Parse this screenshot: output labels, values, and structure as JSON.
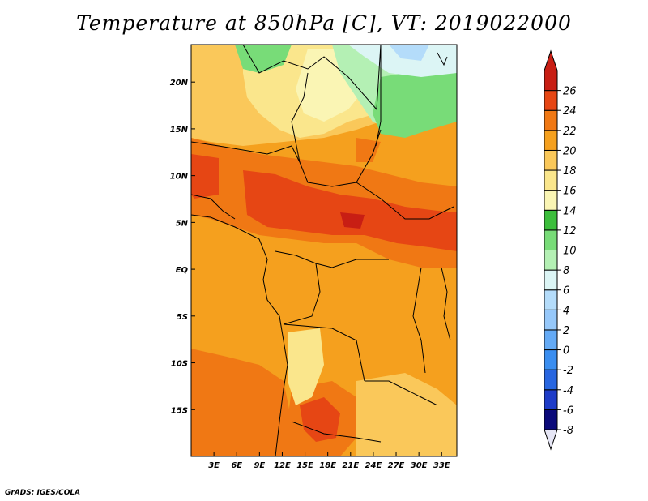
{
  "title": "Temperature at 850hPa [C], VT: 2019022000",
  "credit": "GrADS: IGES/COLA",
  "map": {
    "lon_range": [
      0,
      35
    ],
    "lat_range": [
      -20,
      24
    ],
    "lon_ticks": [
      {
        "value": 3,
        "label": "3E"
      },
      {
        "value": 6,
        "label": "6E"
      },
      {
        "value": 9,
        "label": "9E"
      },
      {
        "value": 12,
        "label": "12E"
      },
      {
        "value": 15,
        "label": "15E"
      },
      {
        "value": 18,
        "label": "18E"
      },
      {
        "value": 21,
        "label": "21E"
      },
      {
        "value": 24,
        "label": "24E"
      },
      {
        "value": 27,
        "label": "27E"
      },
      {
        "value": 30,
        "label": "30E"
      },
      {
        "value": 33,
        "label": "33E"
      }
    ],
    "lat_ticks": [
      {
        "value": 20,
        "label": "20N"
      },
      {
        "value": 15,
        "label": "15N"
      },
      {
        "value": 10,
        "label": "10N"
      },
      {
        "value": 5,
        "label": "5N"
      },
      {
        "value": 0,
        "label": "EQ"
      },
      {
        "value": -5,
        "label": "5S"
      },
      {
        "value": -10,
        "label": "10S"
      },
      {
        "value": -15,
        "label": "15S"
      }
    ]
  },
  "colorbar": {
    "levels": [
      -8,
      -6,
      -4,
      -2,
      0,
      2,
      4,
      6,
      8,
      10,
      12,
      14,
      16,
      18,
      20,
      22,
      24,
      26
    ],
    "labels": [
      "-8",
      "-6",
      "-4",
      "-2",
      "0",
      "2",
      "4",
      "6",
      "8",
      "10",
      "12",
      "14",
      "16",
      "18",
      "20",
      "22",
      "24",
      "26"
    ],
    "colors": [
      "#0b0a7a",
      "#1e3cc8",
      "#2866e0",
      "#3a8ef0",
      "#64aaf5",
      "#96c8fa",
      "#b4dcfa",
      "#dcf5f5",
      "#b4f0b4",
      "#78dc78",
      "#3cbe3c",
      "#faf5b4",
      "#fae68c",
      "#fac85a",
      "#f5a01e",
      "#f07814",
      "#e64614",
      "#c81e14"
    ],
    "low_extend_color": "#e6e6f5"
  }
}
